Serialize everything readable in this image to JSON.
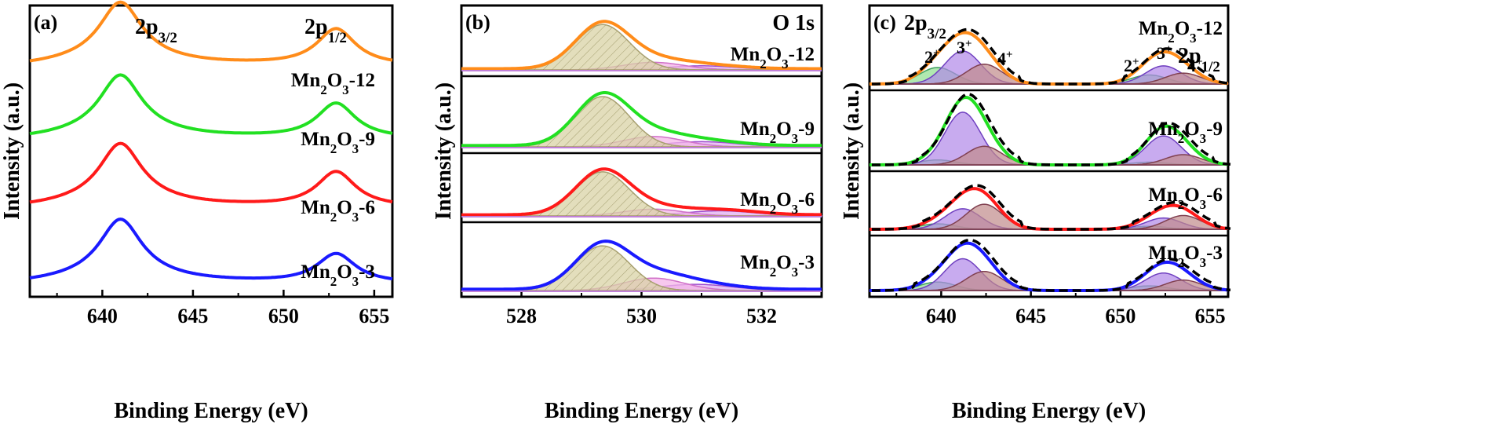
{
  "chart_data": [
    {
      "panel_label": "(a)",
      "type": "line",
      "xlabel": "Binding Energy (eV)",
      "ylabel": "Intensity (a.u.)",
      "xlim": [
        636,
        656
      ],
      "xticks": [
        640,
        645,
        650,
        655
      ],
      "peak_labels": [
        {
          "text": "2p",
          "sub": "3/2",
          "x": 642
        },
        {
          "text": "2p",
          "sub": "1/2",
          "x": 652.5
        }
      ],
      "series": [
        {
          "name": "Mn2O3-12",
          "label": [
            "Mn",
            "2",
            "O",
            "3",
            "-12"
          ],
          "color": "#ff8c1a",
          "baseline": 0.78,
          "amp": 0.19,
          "p1": 0.155,
          "p2": 0.125,
          "end": 0.045
        },
        {
          "name": "Mn2O3-9",
          "label": [
            "Mn",
            "2",
            "O",
            "3",
            "-9"
          ],
          "color": "#22e022",
          "baseline": 0.53,
          "amp": 0.19,
          "p1": 0.15,
          "p2": 0.12,
          "end": 0.035
        },
        {
          "name": "Mn2O3-6",
          "label": [
            "Mn",
            "2",
            "O",
            "3",
            "-6"
          ],
          "color": "#ff1a1a",
          "baseline": 0.295,
          "amp": 0.19,
          "p1": 0.155,
          "p2": 0.12,
          "end": 0.03
        },
        {
          "name": "Mn2O3-3",
          "label": [
            "Mn",
            "2",
            "O",
            "3",
            "-3"
          ],
          "color": "#1a1aff",
          "baseline": 0.035,
          "amp": 0.19,
          "p1": 0.145,
          "p2": 0.1,
          "end": 0.025
        }
      ]
    },
    {
      "panel_label": "(b)",
      "type": "area",
      "title": "O 1s",
      "xlabel": "Binding Energy (eV)",
      "ylabel": "Intensity (a.u.)",
      "xlim": [
        527,
        533
      ],
      "xticks": [
        528,
        530,
        532
      ],
      "components": [
        {
          "center": 529.35,
          "fill": "#d9d3a6",
          "stroke": "#a8a070"
        },
        {
          "center": 530.2,
          "fill": "#f4b6e8",
          "stroke": "#d070c8"
        },
        {
          "center": 531.0,
          "fill": "#e0b0f0",
          "stroke": "#a050d0"
        }
      ],
      "series": [
        {
          "name": "Mn2O3-12",
          "label": [
            "Mn",
            "2",
            "O",
            "3",
            "-12"
          ],
          "color": "#ff8c1a",
          "main": 0.78,
          "c2": 0.13,
          "c3": 0.07,
          "c3center": 531.0
        },
        {
          "name": "Mn2O3-9",
          "label": [
            "Mn",
            "2",
            "O",
            "3",
            "-9"
          ],
          "color": "#22e022",
          "main": 0.78,
          "c2": 0.16,
          "c3": 0.08,
          "c3center": 531.0
        },
        {
          "name": "Mn2O3-6",
          "label": [
            "Mn",
            "2",
            "O",
            "3",
            "-6"
          ],
          "color": "#ff1a1a",
          "main": 0.78,
          "c2": 0.12,
          "c3": 0.09,
          "c3center": 531.3
        },
        {
          "name": "Mn2O3-3",
          "label": [
            "Mn",
            "2",
            "O",
            "3",
            "-3"
          ],
          "color": "#1a1aff",
          "main": 0.72,
          "c2": 0.2,
          "c3": 0.1,
          "c3center": 530.9
        }
      ]
    },
    {
      "panel_label": "(c)",
      "type": "area",
      "xlabel": "Binding Energy (eV)",
      "ylabel": "Intensity (a.u.)",
      "xlim": [
        636,
        656
      ],
      "xticks": [
        640,
        645,
        650,
        655
      ],
      "peak_labels": [
        {
          "text": "2p",
          "sub": "3/2"
        },
        {
          "text": "2p",
          "sub": "1/2"
        }
      ],
      "oxidation_labels": [
        {
          "text": "2",
          "sup": "+"
        },
        {
          "text": "3",
          "sup": "+"
        },
        {
          "text": "4",
          "sup": "+"
        },
        {
          "text": "2",
          "sup": "+"
        },
        {
          "text": "3",
          "sup": "+"
        },
        {
          "text": "4",
          "sup": "+"
        }
      ],
      "components": [
        {
          "name": "2+",
          "fill": "#8fe08f",
          "stroke": "#40a060",
          "c1": 639.8,
          "c2": 651.6
        },
        {
          "name": "3+",
          "fill": "#b088e8",
          "stroke": "#7040c0",
          "c1": 641.2,
          "c2": 652.4
        },
        {
          "name": "4+",
          "fill": "#c08a8a",
          "stroke": "#804050",
          "c1": 642.4,
          "c2": 653.5
        }
      ],
      "series": [
        {
          "name": "Mn2O3-12",
          "label": [
            "Mn",
            "2",
            "O",
            "3",
            "-12"
          ],
          "color": "#ff8c1a",
          "w2": 0.25,
          "w3": 0.5,
          "w4": 0.3
        },
        {
          "name": "Mn2O3-9",
          "label": [
            "Mn",
            "2",
            "O",
            "3",
            "-9"
          ],
          "color": "#22e022",
          "w2": 0.08,
          "w3": 0.85,
          "w4": 0.3
        },
        {
          "name": "Mn2O3-6",
          "label": [
            "Mn",
            "2",
            "O",
            "3",
            "-6"
          ],
          "color": "#ff1a1a",
          "w2": 0.12,
          "w3": 0.45,
          "w4": 0.55
        },
        {
          "name": "Mn2O3-3",
          "label": [
            "Mn",
            "2",
            "O",
            "3",
            "-3"
          ],
          "color": "#1a1aff",
          "w2": 0.2,
          "w3": 0.75,
          "w4": 0.45
        }
      ]
    }
  ]
}
